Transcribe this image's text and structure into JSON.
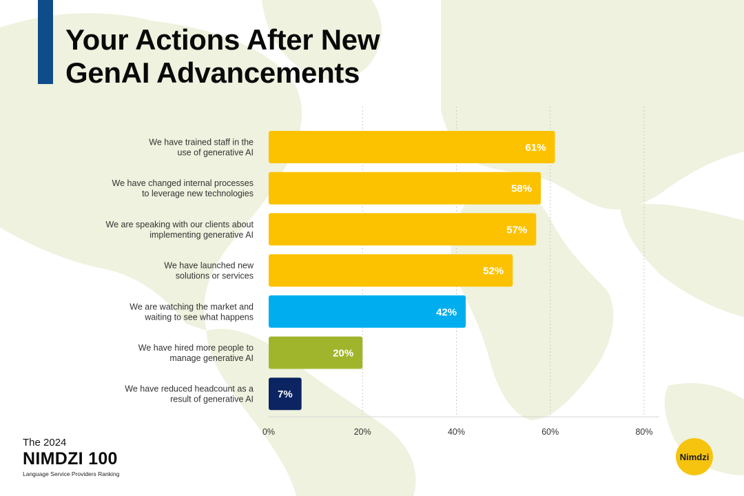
{
  "title_lines": [
    "Your Actions After New",
    "GenAI Advancements"
  ],
  "colors": {
    "background": "#ffffff",
    "map": "#eef2de",
    "title_accent": "#0f4c8a",
    "yellow": "#fcc200",
    "blue": "#00aeef",
    "green": "#a1b52c",
    "navy": "#0c2461",
    "logo": "#f6c40f"
  },
  "chart_data": {
    "type": "bar",
    "orientation": "horizontal",
    "categories": [
      [
        "We have trained staff in the",
        "use of generative AI"
      ],
      [
        "We have changed internal processes",
        "to leverage new technologies"
      ],
      [
        "We are speaking with our clients about",
        "implementing generative AI"
      ],
      [
        "We have launched new",
        "solutions or services"
      ],
      [
        "We are watching the market and",
        "waiting to see what happens"
      ],
      [
        "We have hired more people to",
        "manage generative AI"
      ],
      [
        "We have reduced headcount as a",
        "result of generative AI"
      ]
    ],
    "values": [
      61,
      58,
      57,
      52,
      42,
      20,
      7
    ],
    "value_labels": [
      "61%",
      "58%",
      "57%",
      "52%",
      "42%",
      "20%",
      "7%"
    ],
    "bar_colors": [
      "#fcc200",
      "#fcc200",
      "#fcc200",
      "#fcc200",
      "#00aeef",
      "#a1b52c",
      "#0c2461"
    ],
    "xlim": [
      0,
      80
    ],
    "xticks": [
      0,
      20,
      40,
      60,
      80
    ],
    "xtick_labels": [
      "0%",
      "20%",
      "40%",
      "60%",
      "80%"
    ],
    "grid": "vertical dotted",
    "xlabel": "",
    "ylabel": ""
  },
  "brand": {
    "line1": "The 2024",
    "line2": "NIMDZI 100",
    "line3": "Language Service Providers Ranking"
  },
  "logo": {
    "text": "Nimdzi"
  }
}
